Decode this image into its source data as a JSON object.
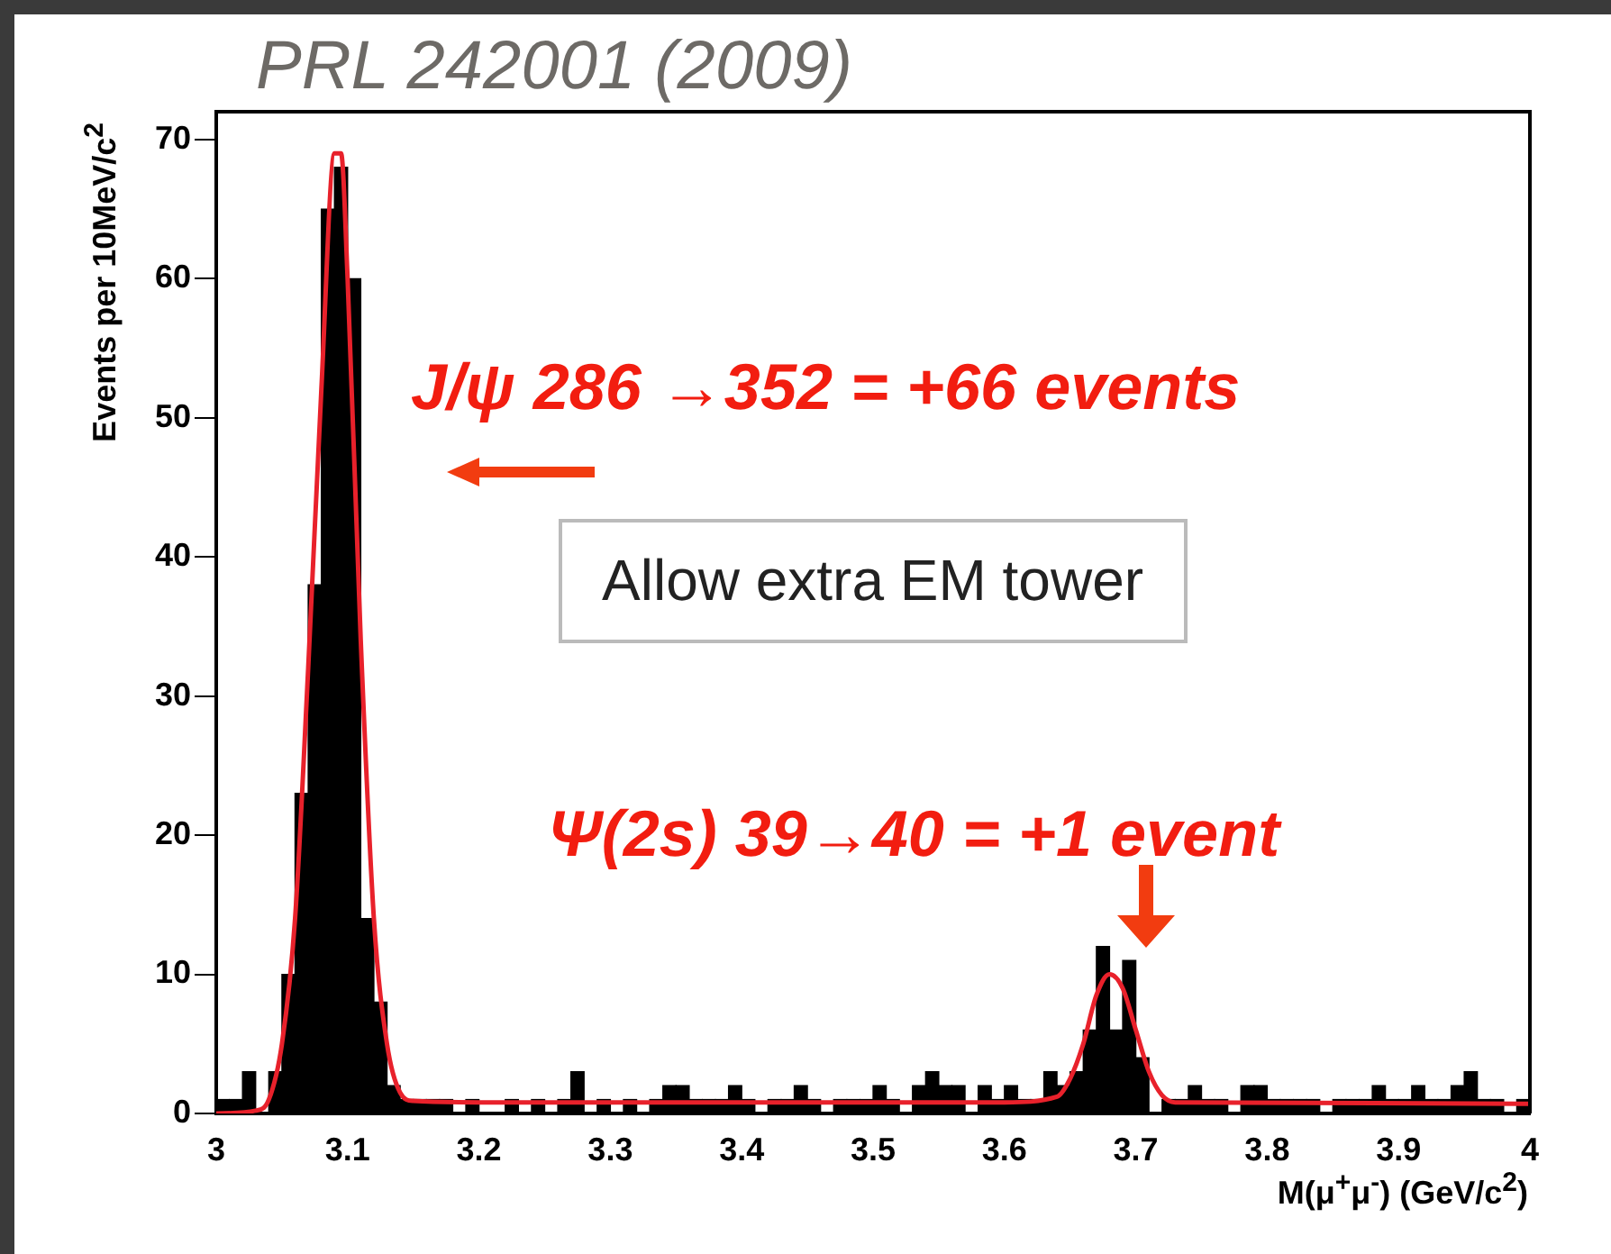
{
  "chart_data": {
    "type": "histogram",
    "annotations": [
      "PRL  242001 (2009)",
      "J/ψ 286 →352 = +66 events",
      "Allow extra EM tower",
      "Ψ(2s) 39→40 = +1 event"
    ],
    "xlabel": "M(μ$^{+}$μ$^{-}$) (GeV/c$^{2}$)",
    "ylabel": "Events per 10MeV/c$^{2}$",
    "bins": [
      3.0,
      3.01,
      3.02,
      3.03,
      3.04,
      3.05,
      3.06,
      3.07,
      3.08,
      3.09,
      3.1,
      3.11,
      3.12,
      3.13,
      3.14,
      3.15,
      3.16,
      3.17,
      3.18,
      3.19,
      3.2,
      3.21,
      3.22,
      3.23,
      3.24,
      3.25,
      3.26,
      3.27,
      3.28,
      3.29,
      3.3,
      3.31,
      3.32,
      3.33,
      3.34,
      3.35,
      3.36,
      3.37,
      3.38,
      3.39,
      3.4,
      3.41,
      3.42,
      3.43,
      3.44,
      3.45,
      3.46,
      3.47,
      3.48,
      3.49,
      3.5,
      3.51,
      3.52,
      3.53,
      3.54,
      3.55,
      3.56,
      3.57,
      3.58,
      3.59,
      3.6,
      3.61,
      3.62,
      3.63,
      3.64,
      3.65,
      3.66,
      3.67,
      3.68,
      3.69,
      3.7,
      3.71,
      3.72,
      3.73,
      3.74,
      3.75,
      3.76,
      3.77,
      3.78,
      3.79,
      3.8,
      3.81,
      3.82,
      3.83,
      3.84,
      3.85,
      3.86,
      3.87,
      3.88,
      3.89,
      3.9,
      3.91,
      3.92,
      3.93,
      3.94,
      3.95,
      3.96,
      3.97,
      3.98,
      3.99,
      4.0
    ],
    "values": [
      1,
      1,
      3,
      0,
      3,
      10,
      23,
      38,
      65,
      68,
      60,
      14,
      8,
      2,
      1,
      1,
      1,
      1,
      0,
      1,
      0,
      0,
      1,
      0,
      1,
      0,
      1,
      3,
      0,
      1,
      0,
      1,
      0,
      1,
      2,
      2,
      1,
      1,
      1,
      2,
      1,
      0,
      1,
      1,
      2,
      1,
      0,
      1,
      1,
      1,
      2,
      1,
      0,
      2,
      3,
      2,
      2,
      0,
      2,
      1,
      2,
      1,
      1,
      3,
      2,
      3,
      6,
      12,
      6,
      11,
      4,
      0,
      1,
      1,
      2,
      1,
      1,
      0,
      2,
      2,
      1,
      1,
      1,
      1,
      0,
      1,
      1,
      1,
      2,
      1,
      1,
      2,
      1,
      1,
      2,
      3,
      1,
      1,
      0,
      1
    ],
    "color": "#000000",
    "series": [
      {
        "type": "line",
        "color": "#e8212b",
        "x": [
          3.0,
          3.03,
          3.04,
          3.05,
          3.06,
          3.07,
          3.08,
          3.09,
          3.095,
          3.1,
          3.11,
          3.12,
          3.13,
          3.14,
          3.15,
          3.2,
          3.5,
          3.6,
          3.64,
          3.65,
          3.66,
          3.67,
          3.68,
          3.69,
          3.7,
          3.71,
          3.72,
          3.73,
          4.0
        ],
        "values": [
          0,
          0.2,
          1,
          5,
          14,
          32,
          52,
          69,
          69,
          60,
          34,
          14,
          5,
          1.5,
          0.9,
          0.8,
          0.8,
          0.8,
          1.2,
          2.5,
          5,
          8.5,
          10,
          9,
          6,
          3,
          1.3,
          0.8,
          0.7
        ]
      }
    ],
    "xlim": [
      3,
      4
    ],
    "xticks": [
      3,
      3.1,
      3.2,
      3.3,
      3.4,
      3.5,
      3.6,
      3.7,
      3.8,
      3.9,
      4
    ],
    "ylim": [
      0,
      72
    ],
    "yticks": [
      0,
      10,
      20,
      30,
      40,
      50,
      60,
      70
    ],
    "grid": false,
    "legend": false
  }
}
